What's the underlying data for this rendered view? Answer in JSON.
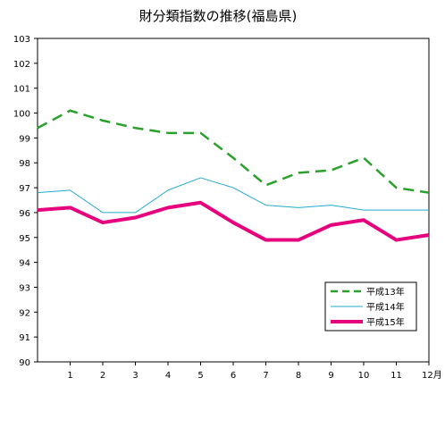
{
  "chart_data": {
    "type": "line",
    "title": "財分類指数の推移(福島県)",
    "xlabel": "",
    "ylabel": "",
    "x": [
      0,
      1,
      2,
      3,
      4,
      5,
      6,
      7,
      8,
      9,
      10,
      11,
      12
    ],
    "x_tick_labels": [
      "1",
      "2",
      "3",
      "4",
      "5",
      "6",
      "7",
      "8",
      "9",
      "10",
      "11",
      "12月"
    ],
    "ylim": [
      90,
      103
    ],
    "y_ticks": [
      90,
      91,
      92,
      93,
      94,
      95,
      96,
      97,
      98,
      99,
      100,
      101,
      102,
      103
    ],
    "grid": false,
    "legend_position": "bottom-right",
    "series": [
      {
        "name": "平成13年",
        "color": "#2ca02c",
        "style": "dashed",
        "values": [
          99.4,
          100.1,
          99.7,
          99.4,
          99.2,
          99.2,
          98.2,
          97.1,
          97.6,
          97.7,
          98.2,
          97.0,
          96.8
        ]
      },
      {
        "name": "平成14年",
        "color": "#22aacc",
        "style": "solid-thin",
        "values": [
          96.8,
          96.9,
          96.0,
          96.0,
          96.9,
          97.4,
          97.0,
          96.3,
          96.2,
          96.3,
          96.1,
          96.1,
          96.1
        ]
      },
      {
        "name": "平成15年",
        "color": "#e6007e",
        "style": "solid-thick",
        "values": [
          96.1,
          96.2,
          95.6,
          95.8,
          96.2,
          96.4,
          95.6,
          94.9,
          94.9,
          95.5,
          95.7,
          94.9,
          95.1
        ]
      }
    ]
  }
}
